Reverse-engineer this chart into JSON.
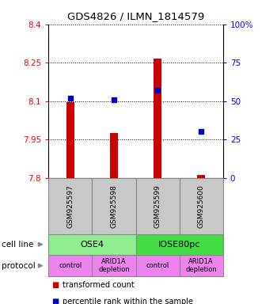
{
  "title": "GDS4826 / ILMN_1814579",
  "samples": [
    "GSM925597",
    "GSM925598",
    "GSM925599",
    "GSM925600"
  ],
  "red_values": [
    8.095,
    7.975,
    8.265,
    7.81
  ],
  "blue_values_pct": [
    52,
    51,
    57,
    30
  ],
  "ylim": [
    7.8,
    8.4
  ],
  "yticks": [
    7.8,
    7.95,
    8.1,
    8.25,
    8.4
  ],
  "ytick_labels": [
    "7.8",
    "7.95",
    "8.1",
    "8.25",
    "8.4"
  ],
  "y2ticks": [
    0,
    25,
    50,
    75,
    100
  ],
  "y2tick_labels": [
    "0",
    "25",
    "50",
    "75",
    "100%"
  ],
  "cell_line_groups": [
    [
      "OSE4",
      2,
      "#90EE90"
    ],
    [
      "IOSE80pc",
      2,
      "#44DD44"
    ]
  ],
  "protocol_labels": [
    "control",
    "ARID1A\ndepletion",
    "control",
    "ARID1A\ndepletion"
  ],
  "protocol_color": "#EE82EE",
  "sample_box_color": "#C8C8C8",
  "bar_color": "#CC0000",
  "dot_color": "#0000CC",
  "legend_red_label": "transformed count",
  "legend_blue_label": "percentile rank within the sample",
  "cell_line_row_label": "cell line",
  "protocol_row_label": "protocol",
  "bar_width": 0.18
}
